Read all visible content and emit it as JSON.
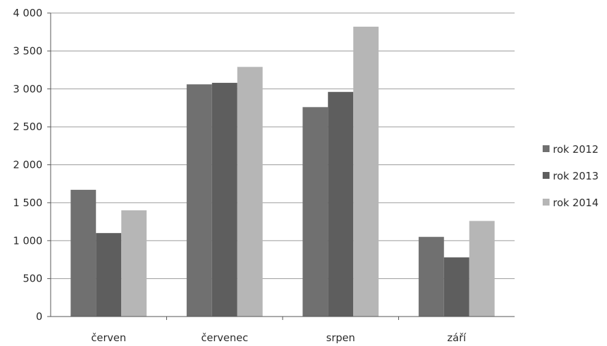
{
  "chart_data": {
    "type": "bar",
    "title": "",
    "xlabel": "",
    "ylabel": "",
    "categories": [
      "červen",
      "červenec",
      "srpen",
      "září"
    ],
    "series": [
      {
        "name": "rok 2012",
        "values": [
          1670,
          3060,
          2760,
          1050
        ],
        "color": "#707070"
      },
      {
        "name": "rok 2013",
        "values": [
          1100,
          3080,
          2960,
          780
        ],
        "color": "#5e5e5e"
      },
      {
        "name": "rok 2014",
        "values": [
          1400,
          3290,
          3820,
          1260
        ],
        "color": "#b6b6b6"
      }
    ],
    "ylim": [
      0,
      4000
    ],
    "yticks": [
      0,
      500,
      1000,
      1500,
      2000,
      2500,
      3000,
      3500,
      4000
    ],
    "ytick_labels": [
      "0",
      "500",
      "1 000",
      "1 500",
      "2 000",
      "2 500",
      "3 000",
      "3 500",
      "4 000"
    ],
    "grid": true,
    "legend_position": "right"
  }
}
